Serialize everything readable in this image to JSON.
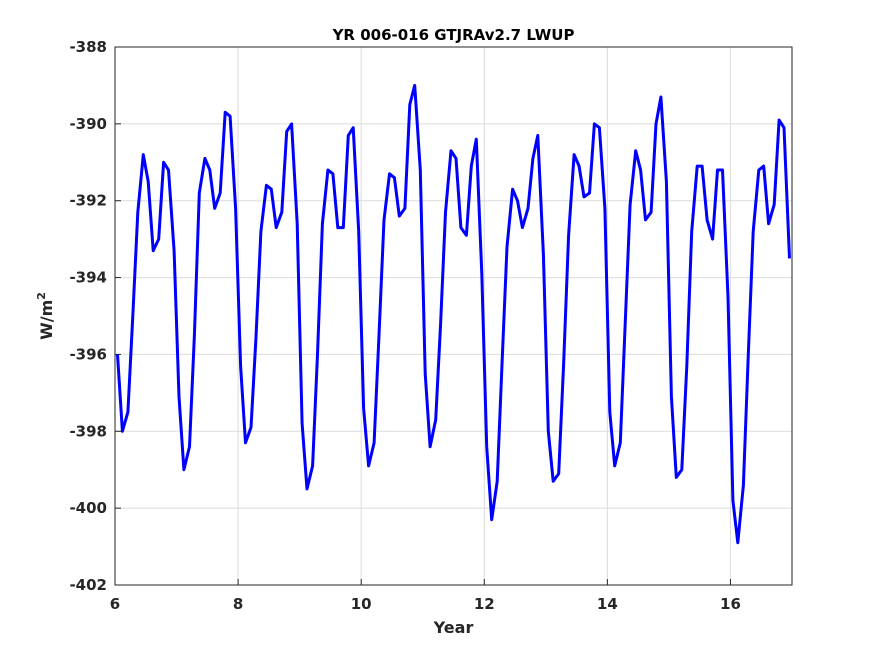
{
  "chart_data": {
    "type": "line",
    "title": "YR 006-016 GTJRAv2.7 LWUP",
    "xlabel": "Year",
    "ylabel": "W/m",
    "ylabel_superscript": "2",
    "xlim": [
      6,
      17
    ],
    "ylim": [
      -402,
      -388
    ],
    "xticks": [
      6,
      8,
      10,
      12,
      14,
      16
    ],
    "yticks": [
      -402,
      -400,
      -398,
      -396,
      -394,
      -392,
      -390,
      -388
    ],
    "grid": true,
    "line_color": "#0000ff",
    "series": [
      {
        "x": [
          6.04,
          6.12,
          6.21,
          6.29,
          6.37,
          6.46,
          6.54,
          6.62,
          6.71,
          6.79,
          6.87,
          6.96,
          7.04,
          7.12,
          7.21,
          7.29,
          7.37,
          7.46,
          7.54,
          7.62,
          7.71,
          7.79,
          7.87,
          7.96,
          8.04,
          8.12,
          8.21,
          8.29,
          8.37,
          8.46,
          8.54,
          8.62,
          8.71,
          8.79,
          8.87,
          8.96,
          9.04,
          9.12,
          9.21,
          9.29,
          9.37,
          9.46,
          9.54,
          9.62,
          9.71,
          9.79,
          9.87,
          9.96,
          10.04,
          10.12,
          10.21,
          10.29,
          10.37,
          10.46,
          10.54,
          10.62,
          10.71,
          10.79,
          10.87,
          10.96,
          11.04,
          11.12,
          11.21,
          11.29,
          11.37,
          11.46,
          11.54,
          11.62,
          11.71,
          11.79,
          11.87,
          11.96,
          12.04,
          12.12,
          12.21,
          12.29,
          12.37,
          12.46,
          12.54,
          12.62,
          12.71,
          12.79,
          12.87,
          12.96,
          13.04,
          13.12,
          13.21,
          13.29,
          13.37,
          13.46,
          13.54,
          13.62,
          13.71,
          13.79,
          13.87,
          13.96,
          14.04,
          14.12,
          14.21,
          14.29,
          14.37,
          14.46,
          14.54,
          14.62,
          14.71,
          14.79,
          14.87,
          14.96,
          15.04,
          15.12,
          15.21,
          15.29,
          15.37,
          15.46,
          15.54,
          15.62,
          15.71,
          15.79,
          15.87,
          15.96,
          16.04,
          16.12,
          16.21,
          16.29,
          16.37,
          16.46,
          16.54,
          16.62,
          16.71,
          16.79,
          16.87,
          16.96
        ],
        "y": [
          -396.0,
          -398.0,
          -397.5,
          -395.0,
          -392.3,
          -390.8,
          -391.5,
          -393.3,
          -393.0,
          -391.0,
          -391.2,
          -393.3,
          -397.1,
          -399.0,
          -398.4,
          -395.5,
          -391.8,
          -390.9,
          -391.2,
          -392.2,
          -391.8,
          -389.7,
          -389.8,
          -392.2,
          -396.3,
          -398.3,
          -397.9,
          -395.6,
          -392.8,
          -391.6,
          -391.7,
          -392.7,
          -392.3,
          -390.2,
          -390.0,
          -392.6,
          -397.8,
          -399.5,
          -398.9,
          -396.0,
          -392.6,
          -391.2,
          -391.3,
          -392.7,
          -392.7,
          -390.3,
          -390.1,
          -392.8,
          -397.4,
          -398.9,
          -398.3,
          -395.5,
          -392.5,
          -391.3,
          -391.4,
          -392.4,
          -392.2,
          -389.5,
          -389.0,
          -391.2,
          -396.5,
          -398.4,
          -397.7,
          -395.2,
          -392.3,
          -390.7,
          -390.9,
          -392.7,
          -392.9,
          -391.1,
          -390.4,
          -393.9,
          -398.4,
          -400.3,
          -399.3,
          -396.2,
          -393.2,
          -391.7,
          -392.0,
          -392.7,
          -392.2,
          -390.9,
          -390.3,
          -393.4,
          -398.0,
          -399.3,
          -399.1,
          -396.2,
          -392.9,
          -390.8,
          -391.1,
          -391.9,
          -391.8,
          -390.0,
          -390.1,
          -392.2,
          -397.5,
          -398.9,
          -398.3,
          -395.2,
          -392.1,
          -390.7,
          -391.2,
          -392.5,
          -392.3,
          -390.0,
          -389.3,
          -391.5,
          -397.1,
          -399.2,
          -399.0,
          -396.3,
          -392.8,
          -391.1,
          -391.1,
          -392.5,
          -393.0,
          -391.2,
          -391.2,
          -394.5,
          -399.8,
          -400.9,
          -399.4,
          -396.0,
          -392.8,
          -391.2,
          -391.1,
          -392.6,
          -392.1,
          -389.9,
          -390.1,
          -393.5
        ]
      }
    ]
  }
}
